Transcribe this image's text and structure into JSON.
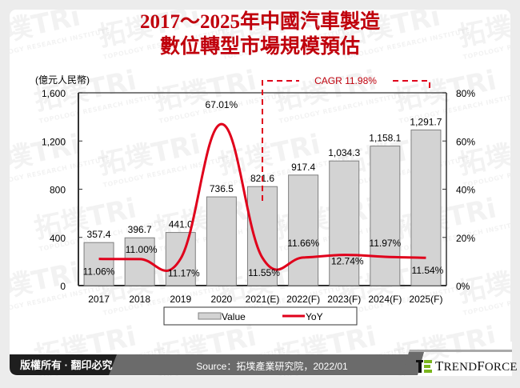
{
  "title": {
    "line1": "2017～2025年中國汽車製造",
    "line2": "數位轉型市場規模預估"
  },
  "chart_data": {
    "type": "bar",
    "title": "2017～2025年中國汽車製造數位轉型市場規模預估",
    "categories": [
      "2017",
      "2018",
      "2019",
      "2020",
      "2021(E)",
      "2022(F)",
      "2023(F)",
      "2024(F)",
      "2025(F)"
    ],
    "series": [
      {
        "name": "Value",
        "type": "bar",
        "axis": "left",
        "values": [
          357.4,
          396.7,
          441.0,
          736.5,
          821.6,
          917.4,
          1034.3,
          1158.1,
          1291.7
        ],
        "labels": [
          "357.4",
          "396.7",
          "441.0",
          "736.5",
          "821.6",
          "917.4",
          "1,034.3",
          "1,158.1",
          "1,291.7"
        ],
        "color": "#d3d3d3"
      },
      {
        "name": "YoY",
        "type": "line",
        "axis": "right",
        "values": [
          11.06,
          11.0,
          11.17,
          67.01,
          11.55,
          11.66,
          12.74,
          11.97,
          11.54
        ],
        "labels": [
          "11.06%",
          "11.00%",
          "11.17%",
          "67.01%",
          "11.55%",
          "11.66%",
          "12.74%",
          "11.97%",
          "11.54%"
        ],
        "color": "#e0001b"
      }
    ],
    "ylabel": "(億元人民幣)",
    "ylim": [
      0,
      1600
    ],
    "yticks": [
      "0",
      "400",
      "800",
      "1,200",
      "1,600"
    ],
    "y2lim": [
      0,
      80
    ],
    "y2ticks": [
      "0%",
      "20%",
      "40%",
      "60%",
      "80%"
    ],
    "legend_position": "bottom",
    "grid": false,
    "annotations": [
      {
        "text": "CAGR 11.98%",
        "span": [
          "2021(E)",
          "2025(F)"
        ],
        "style": "red dashed bracket"
      }
    ]
  },
  "legend": {
    "value_label": "Value",
    "yoy_label": "YoY"
  },
  "footer": {
    "copyright": "版權所有 · 翻印必究",
    "source": "Source：拓墣產業研究院，2022/01",
    "brand": "TrendForce"
  },
  "watermark": {
    "text": "拓墣TRi",
    "subtext": "TOPOLOGY RESEARCH INSTITUTE"
  },
  "colors": {
    "title": "#c0000c",
    "line": "#e0001b",
    "bar_fill": "#d3d3d3",
    "bar_stroke": "#808080",
    "footer_dark": "#1e1e1e",
    "footer_mid": "#6b6b6b",
    "brand_green": "#7ab51d"
  }
}
